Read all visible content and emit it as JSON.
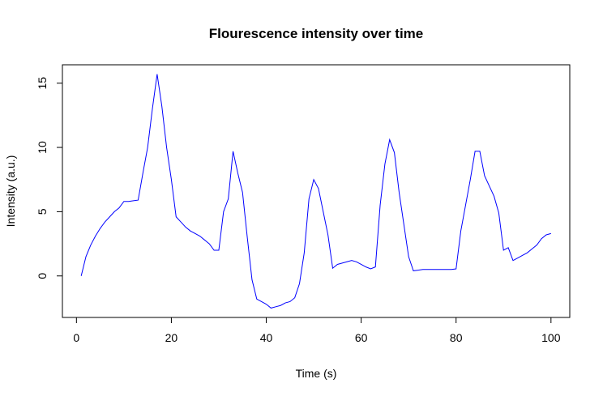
{
  "chart_data": {
    "type": "line",
    "title": "Flourescence intensity over time",
    "x_label": "Time (s)",
    "y_label": "Intensity (a.u.)",
    "x": [
      1,
      2,
      3,
      4,
      5,
      6,
      7,
      8,
      9,
      10,
      11,
      12,
      13,
      14,
      15,
      16,
      17,
      18,
      19,
      20,
      21,
      22,
      23,
      24,
      25,
      26,
      27,
      28,
      29,
      30,
      31,
      32,
      33,
      34,
      35,
      36,
      37,
      38,
      39,
      40,
      41,
      42,
      43,
      44,
      45,
      46,
      47,
      48,
      49,
      50,
      51,
      52,
      53,
      54,
      55,
      56,
      57,
      58,
      59,
      60,
      61,
      62,
      63,
      64,
      65,
      66,
      67,
      68,
      69,
      70,
      71,
      72,
      73,
      74,
      75,
      76,
      77,
      78,
      79,
      80,
      81,
      82,
      83,
      84,
      85,
      86,
      87,
      88,
      89,
      90,
      91,
      92,
      93,
      94,
      95,
      96,
      97,
      98,
      99,
      100
    ],
    "series": [
      {
        "name": "Intensity",
        "color": "#0000ff",
        "values": [
          0,
          1.5,
          2.4,
          3.1,
          3.7,
          4.2,
          4.6,
          5.0,
          5.3,
          5.8,
          5.8,
          5.85,
          5.9,
          8.0,
          10.0,
          13.0,
          15.7,
          13.2,
          10.0,
          7.5,
          4.6,
          4.2,
          3.8,
          3.5,
          3.3,
          3.1,
          2.8,
          2.5,
          2.0,
          2.0,
          5.0,
          6.0,
          9.7,
          8.0,
          6.5,
          3.0,
          -0.3,
          -1.8,
          -2.0,
          -2.2,
          -2.5,
          -2.4,
          -2.3,
          -2.1,
          -2.0,
          -1.7,
          -0.6,
          1.8,
          6.0,
          7.5,
          6.8,
          5.0,
          3.2,
          0.6,
          0.9,
          1.0,
          1.1,
          1.2,
          1.1,
          0.9,
          0.7,
          0.55,
          0.7,
          5.5,
          8.7,
          10.6,
          9.6,
          6.5,
          4.0,
          1.5,
          0.4,
          0.45,
          0.5,
          0.5,
          0.5,
          0.5,
          0.5,
          0.5,
          0.5,
          0.55,
          3.5,
          5.5,
          7.5,
          9.7,
          9.7,
          7.8,
          7.0,
          6.2,
          4.9,
          2.0,
          2.2,
          1.2,
          1.4,
          1.6,
          1.8,
          2.1,
          2.4,
          2.9,
          3.2,
          3.3
        ]
      }
    ],
    "xlim": [
      -2.96,
      103.96
    ],
    "ylim": [
      -3.23,
      16.43
    ],
    "xticks": [
      0,
      20,
      40,
      60,
      80,
      100
    ],
    "yticks": [
      0,
      5,
      10,
      15
    ]
  }
}
